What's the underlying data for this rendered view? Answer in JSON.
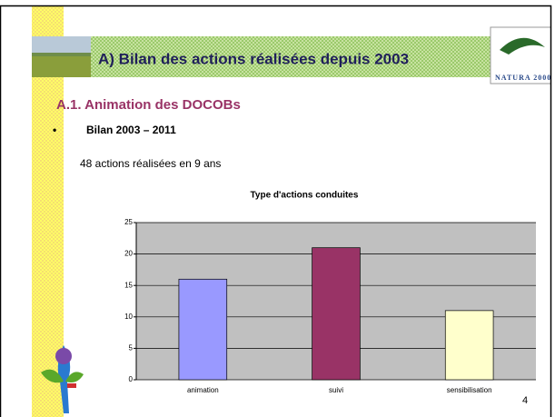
{
  "slide": {
    "title": "A) Bilan des actions réalisées depuis 2003",
    "heading": "A.1. Animation des DOCOBs",
    "bullet": "•",
    "bullet_text": "Bilan 2003 – 2011",
    "summary": "48 actions réalisées en 9 ans",
    "logo_text": "NATURA 2000",
    "page_number": "4"
  },
  "chart_data": {
    "type": "bar",
    "title": "Type d'actions conduites",
    "categories": [
      "animation",
      "suivi",
      "sensibilisation"
    ],
    "values": [
      16,
      21,
      11
    ],
    "colors": [
      "#9999ff",
      "#993366",
      "#ffffcc"
    ],
    "ylim": [
      0,
      25
    ],
    "yticks": [
      0,
      5,
      10,
      15,
      20,
      25
    ],
    "grid": true
  }
}
